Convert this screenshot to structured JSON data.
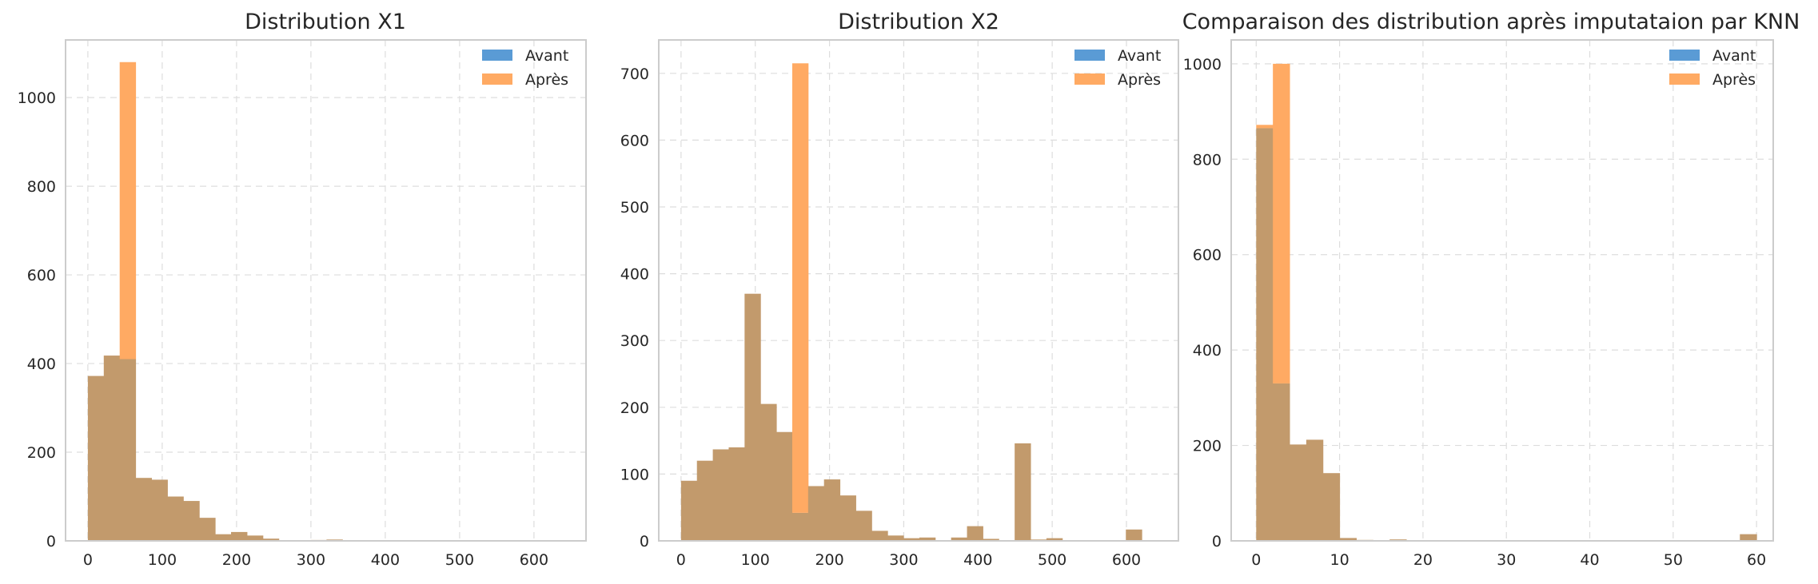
{
  "colors": {
    "avant": "#5a9bd5",
    "apres": "#ffaa63",
    "overlap": "#c29a6c",
    "grid": "#dddddd",
    "frame": "#cccccc"
  },
  "chart_data": [
    {
      "type": "bar",
      "title": "Distribution X1",
      "xlabel": "",
      "ylabel": "",
      "xlim": [
        -30,
        670
      ],
      "ylim": [
        0,
        1130
      ],
      "xticks": [
        0,
        100,
        200,
        300,
        400,
        500,
        600
      ],
      "yticks": [
        0,
        200,
        400,
        600,
        800,
        1000
      ],
      "grid": true,
      "legend_position": "top-right",
      "bin_edges": [
        0,
        21.4,
        42.8,
        64.2,
        85.6,
        107,
        128.4,
        149.8,
        171.2,
        192.6,
        214,
        235.4,
        256.8,
        278.2,
        299.6,
        321,
        342.4,
        363.8,
        385.2,
        406.6,
        428,
        449.4,
        470.8,
        492.2,
        513.6,
        535,
        556.4,
        577.8,
        599.2,
        620.6,
        642
      ],
      "series": [
        {
          "name": "Avant",
          "values": [
            372,
            418,
            410,
            142,
            138,
            100,
            90,
            52,
            15,
            20,
            12,
            5,
            0,
            0,
            2,
            3,
            0,
            0,
            0,
            0,
            0,
            0,
            0,
            0,
            0,
            0,
            0,
            0,
            0,
            0
          ]
        },
        {
          "name": "Après",
          "values": [
            372,
            418,
            1080,
            142,
            138,
            100,
            90,
            52,
            15,
            20,
            12,
            5,
            0,
            0,
            2,
            3,
            0,
            0,
            0,
            0,
            0,
            0,
            0,
            0,
            0,
            0,
            0,
            0,
            0,
            0
          ]
        }
      ]
    },
    {
      "type": "bar",
      "title": "Distribution X2",
      "xlabel": "",
      "ylabel": "",
      "xlim": [
        -30,
        670
      ],
      "ylim": [
        0,
        750
      ],
      "xticks": [
        0,
        100,
        200,
        300,
        400,
        500,
        600
      ],
      "yticks": [
        0,
        100,
        200,
        300,
        400,
        500,
        600,
        700
      ],
      "grid": true,
      "legend_position": "top-right",
      "bin_edges": [
        0,
        21.4,
        42.8,
        64.2,
        85.6,
        107,
        128.4,
        149.8,
        171.2,
        192.6,
        214,
        235.4,
        256.8,
        278.2,
        299.6,
        321,
        342.4,
        363.8,
        385.2,
        406.6,
        428,
        449.4,
        470.8,
        492.2,
        513.6,
        535,
        556.4,
        577.8,
        599.2,
        620.6,
        642
      ],
      "series": [
        {
          "name": "Avant",
          "values": [
            90,
            120,
            137,
            140,
            370,
            205,
            163,
            42,
            82,
            92,
            68,
            45,
            15,
            8,
            4,
            5,
            0,
            5,
            22,
            3,
            0,
            146,
            2,
            4,
            0,
            0,
            0,
            0,
            17,
            0
          ]
        },
        {
          "name": "Après",
          "values": [
            90,
            120,
            137,
            140,
            370,
            205,
            163,
            715,
            82,
            92,
            68,
            45,
            15,
            8,
            4,
            5,
            0,
            5,
            22,
            3,
            0,
            146,
            2,
            4,
            0,
            0,
            0,
            0,
            17,
            0
          ]
        }
      ]
    },
    {
      "type": "bar",
      "title": "Comparaison des distribution après imputataion par KNN",
      "xlabel": "",
      "ylabel": "",
      "xlim": [
        -3,
        62
      ],
      "ylim": [
        0,
        1050
      ],
      "xticks": [
        0,
        10,
        20,
        30,
        40,
        50,
        60
      ],
      "yticks": [
        0,
        200,
        400,
        600,
        800,
        1000
      ],
      "grid": true,
      "legend_position": "top-right",
      "bin_edges": [
        0,
        2,
        4,
        6,
        8,
        10,
        12,
        14,
        16,
        18,
        20,
        22,
        24,
        26,
        28,
        30,
        32,
        34,
        36,
        38,
        40,
        42,
        44,
        46,
        48,
        50,
        52,
        54,
        56,
        58,
        60
      ],
      "series": [
        {
          "name": "Avant",
          "values": [
            865,
            330,
            202,
            212,
            142,
            6,
            2,
            0,
            3,
            0,
            0,
            0,
            0,
            0,
            0,
            0,
            0,
            0,
            0,
            0,
            0,
            0,
            0,
            0,
            0,
            0,
            0,
            0,
            0,
            14
          ]
        },
        {
          "name": "Après",
          "values": [
            872,
            1000,
            202,
            212,
            142,
            6,
            2,
            0,
            3,
            0,
            0,
            0,
            0,
            0,
            0,
            0,
            0,
            0,
            0,
            0,
            0,
            0,
            0,
            0,
            0,
            0,
            0,
            0,
            0,
            14
          ]
        }
      ]
    }
  ]
}
